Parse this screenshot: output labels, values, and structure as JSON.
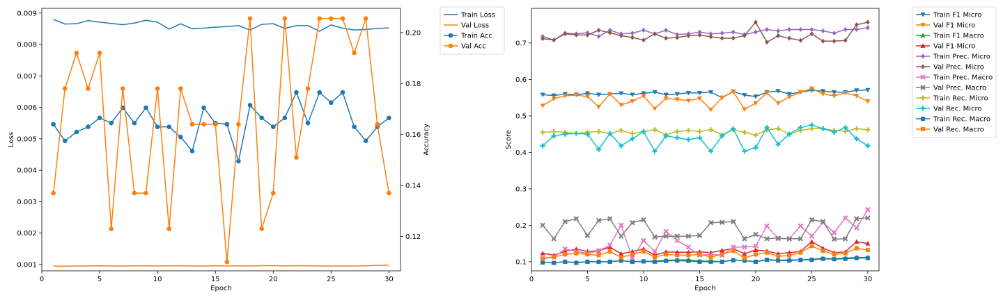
{
  "charts": [
    {
      "type": "line",
      "xlabel": "Epoch",
      "ylabel": "Loss",
      "y2label": "Accuracy",
      "xlim": [
        0,
        31
      ],
      "xticks": [
        0,
        5,
        10,
        15,
        20,
        25,
        30
      ],
      "ylim": [
        0.0008,
        0.00915
      ],
      "yticks": [
        0.001,
        0.002,
        0.003,
        0.004,
        0.005,
        0.006,
        0.007,
        0.008,
        0.009
      ],
      "y2lim": [
        0.1065,
        0.2095
      ],
      "y2ticks": [
        0.12,
        0.14,
        0.16,
        0.18,
        0.2
      ],
      "legend": "outside-top-right",
      "x": [
        1,
        2,
        3,
        4,
        5,
        6,
        7,
        8,
        9,
        10,
        11,
        12,
        13,
        14,
        15,
        16,
        17,
        18,
        19,
        20,
        21,
        22,
        23,
        24,
        25,
        26,
        27,
        28,
        29,
        30
      ],
      "series": [
        {
          "name": "Train Loss",
          "axis": "left",
          "color": "#1f77b4",
          "marker": "none",
          "values": [
            0.0088,
            0.00865,
            0.00866,
            0.00876,
            0.00871,
            0.00867,
            0.00863,
            0.00868,
            0.00877,
            0.00871,
            0.00849,
            0.00866,
            0.0085,
            0.00852,
            0.00855,
            0.00857,
            0.0086,
            0.00846,
            0.00864,
            0.00866,
            0.00851,
            0.0086,
            0.0086,
            0.00842,
            0.00862,
            0.00852,
            0.00846,
            0.00848,
            0.00851,
            0.00853
          ]
        },
        {
          "name": "Val Loss",
          "axis": "left",
          "color": "#ff7f0e",
          "marker": "none",
          "values": [
            0.00095,
            0.00095,
            0.000955,
            0.000955,
            0.00096,
            0.000955,
            0.000955,
            0.00096,
            0.00096,
            0.000955,
            0.00096,
            0.00096,
            0.000955,
            0.000955,
            0.00096,
            0.000955,
            0.00096,
            0.000955,
            0.000965,
            0.000965,
            0.000955,
            0.000965,
            0.00096,
            0.000955,
            0.000955,
            0.000955,
            0.000955,
            0.00096,
            0.00097,
            0.00098
          ]
        },
        {
          "name": "Train Acc",
          "axis": "right",
          "color": "#1f77b4",
          "marker": "circle",
          "values": [
            0.164,
            0.1575,
            0.161,
            0.163,
            0.1665,
            0.1645,
            0.1705,
            0.1645,
            0.1705,
            0.163,
            0.163,
            0.159,
            0.1535,
            0.1705,
            0.1645,
            0.164,
            0.1495,
            0.1715,
            0.1665,
            0.163,
            0.1665,
            0.1765,
            0.1645,
            0.1765,
            0.1725,
            0.1765,
            0.163,
            0.1575,
            0.163,
            0.1665
          ]
        },
        {
          "name": "Val Acc",
          "axis": "right",
          "color": "#ff7f0e",
          "marker": "circle",
          "values": [
            0.137,
            0.178,
            0.192,
            0.178,
            0.192,
            0.123,
            0.178,
            0.137,
            0.137,
            0.178,
            0.123,
            0.178,
            0.164,
            0.164,
            0.164,
            0.11,
            0.164,
            0.2055,
            0.123,
            0.137,
            0.2055,
            0.151,
            0.178,
            0.2055,
            0.2055,
            0.2055,
            0.192,
            0.2055,
            0.164,
            0.137
          ]
        }
      ]
    },
    {
      "type": "line",
      "xlabel": "Epoch",
      "ylabel": "Score",
      "xlim": [
        0,
        31
      ],
      "xticks": [
        0,
        5,
        10,
        15,
        20,
        25,
        30
      ],
      "ylim": [
        0.075,
        0.795
      ],
      "yticks": [
        0.1,
        0.2,
        0.3,
        0.4,
        0.5,
        0.6,
        0.7
      ],
      "legend": "outside-top-right",
      "x": [
        1,
        2,
        3,
        4,
        5,
        6,
        7,
        8,
        9,
        10,
        11,
        12,
        13,
        14,
        15,
        16,
        17,
        18,
        19,
        20,
        21,
        22,
        23,
        24,
        25,
        26,
        27,
        28,
        29,
        30
      ],
      "series": [
        {
          "name": "Train F1 Micro",
          "color": "#1f77b4",
          "marker": "triangle-down",
          "values": [
            0.558,
            0.556,
            0.56,
            0.558,
            0.562,
            0.558,
            0.56,
            0.562,
            0.558,
            0.562,
            0.565,
            0.558,
            0.56,
            0.563,
            0.563,
            0.565,
            0.55,
            0.567,
            0.557,
            0.553,
            0.565,
            0.568,
            0.56,
            0.565,
            0.57,
            0.568,
            0.565,
            0.565,
            0.57,
            0.571
          ]
        },
        {
          "name": "Val F1 Micro",
          "color": "#ff7f0e",
          "marker": "triangle-down",
          "values": [
            0.528,
            0.547,
            0.555,
            0.557,
            0.553,
            0.525,
            0.56,
            0.53,
            0.54,
            0.555,
            0.52,
            0.548,
            0.545,
            0.542,
            0.548,
            0.517,
            0.55,
            0.566,
            0.518,
            0.535,
            0.563,
            0.535,
            0.552,
            0.565,
            0.575,
            0.56,
            0.555,
            0.563,
            0.555,
            0.54
          ]
        },
        {
          "name": "Train F1 Macro",
          "color": "#2ca02c",
          "marker": "triangle-up",
          "values": [
            0.098,
            0.097,
            0.1,
            0.098,
            0.1,
            0.1,
            0.1,
            0.103,
            0.1,
            0.101,
            0.102,
            0.104,
            0.105,
            0.105,
            0.102,
            0.102,
            0.1,
            0.105,
            0.103,
            0.1,
            0.106,
            0.104,
            0.105,
            0.105,
            0.107,
            0.109,
            0.108,
            0.11,
            0.112,
            0.112
          ]
        },
        {
          "name": "Val F1 Micro",
          "color": "#d62728",
          "marker": "triangle-up",
          "values": [
            0.123,
            0.118,
            0.128,
            0.135,
            0.128,
            0.13,
            0.14,
            0.122,
            0.128,
            0.135,
            0.118,
            0.127,
            0.126,
            0.126,
            0.127,
            0.125,
            0.131,
            0.136,
            0.122,
            0.132,
            0.129,
            0.122,
            0.125,
            0.128,
            0.155,
            0.137,
            0.125,
            0.127,
            0.155,
            0.15
          ]
        },
        {
          "name": "Train Prec. Micro",
          "color": "#9467bd",
          "marker": "diamond",
          "values": [
            0.718,
            0.708,
            0.727,
            0.725,
            0.728,
            0.718,
            0.735,
            0.725,
            0.727,
            0.735,
            0.725,
            0.735,
            0.723,
            0.725,
            0.73,
            0.725,
            0.727,
            0.73,
            0.723,
            0.73,
            0.737,
            0.733,
            0.737,
            0.737,
            0.737,
            0.733,
            0.727,
            0.737,
            0.737,
            0.742
          ]
        },
        {
          "name": "Val Prec. Micro",
          "color": "#8c564b",
          "marker": "diamond",
          "values": [
            0.712,
            0.708,
            0.725,
            0.722,
            0.722,
            0.735,
            0.728,
            0.72,
            0.715,
            0.708,
            0.725,
            0.713,
            0.715,
            0.72,
            0.722,
            0.717,
            0.713,
            0.713,
            0.72,
            0.757,
            0.702,
            0.72,
            0.713,
            0.707,
            0.725,
            0.705,
            0.705,
            0.707,
            0.75,
            0.757
          ]
        },
        {
          "name": "Train Prec. Macro",
          "color": "#e377c2",
          "marker": "x",
          "values": [
            0.11,
            0.113,
            0.135,
            0.128,
            0.123,
            0.13,
            0.145,
            0.2,
            0.11,
            0.158,
            0.128,
            0.183,
            0.158,
            0.14,
            0.118,
            0.12,
            0.118,
            0.14,
            0.14,
            0.143,
            0.198,
            0.163,
            0.163,
            0.198,
            0.17,
            0.208,
            0.18,
            0.22,
            0.193,
            0.243
          ]
        },
        {
          "name": "Val Prec. Macro",
          "color": "#7f7f7f",
          "marker": "x",
          "values": [
            0.2,
            0.163,
            0.21,
            0.218,
            0.172,
            0.213,
            0.218,
            0.17,
            0.207,
            0.215,
            0.168,
            0.17,
            0.17,
            0.17,
            0.172,
            0.207,
            0.208,
            0.21,
            0.163,
            0.175,
            0.163,
            0.165,
            0.163,
            0.163,
            0.215,
            0.21,
            0.162,
            0.163,
            0.218,
            0.22
          ]
        },
        {
          "name": "Train Rec. Micro",
          "color": "#bcbd22",
          "marker": "plus",
          "values": [
            0.455,
            0.457,
            0.455,
            0.452,
            0.455,
            0.457,
            0.452,
            0.46,
            0.452,
            0.457,
            0.462,
            0.448,
            0.457,
            0.46,
            0.457,
            0.462,
            0.448,
            0.462,
            0.455,
            0.447,
            0.462,
            0.465,
            0.45,
            0.46,
            0.465,
            0.465,
            0.46,
            0.458,
            0.465,
            0.462
          ]
        },
        {
          "name": "Val Rec. Micro",
          "color": "#17becf",
          "marker": "plus",
          "values": [
            0.418,
            0.445,
            0.45,
            0.452,
            0.45,
            0.408,
            0.452,
            0.418,
            0.437,
            0.457,
            0.403,
            0.445,
            0.44,
            0.435,
            0.44,
            0.403,
            0.445,
            0.465,
            0.403,
            0.413,
            0.468,
            0.422,
            0.45,
            0.468,
            0.475,
            0.465,
            0.455,
            0.468,
            0.437,
            0.418
          ]
        },
        {
          "name": "Train Rec. Macro",
          "color": "#1f77b4",
          "marker": "square",
          "values": [
            0.098,
            0.097,
            0.1,
            0.097,
            0.1,
            0.1,
            0.1,
            0.103,
            0.1,
            0.101,
            0.1,
            0.102,
            0.103,
            0.102,
            0.1,
            0.1,
            0.1,
            0.104,
            0.103,
            0.1,
            0.105,
            0.103,
            0.103,
            0.105,
            0.105,
            0.108,
            0.107,
            0.108,
            0.11,
            0.11
          ]
        },
        {
          "name": "Val Rec. Macro",
          "color": "#ff7f0e",
          "marker": "square",
          "values": [
            0.108,
            0.113,
            0.12,
            0.123,
            0.12,
            0.118,
            0.128,
            0.112,
            0.12,
            0.128,
            0.113,
            0.12,
            0.118,
            0.118,
            0.12,
            0.113,
            0.12,
            0.13,
            0.11,
            0.12,
            0.125,
            0.115,
            0.117,
            0.125,
            0.143,
            0.13,
            0.12,
            0.123,
            0.137,
            0.132
          ]
        }
      ]
    }
  ]
}
